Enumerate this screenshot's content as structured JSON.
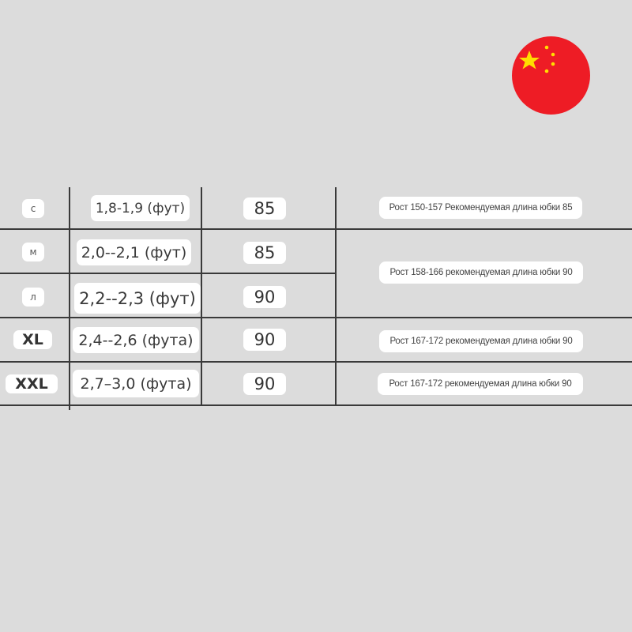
{
  "flag": {
    "icon": "china-flag-icon",
    "color": "#ee1c25",
    "star_color": "#ffde00"
  },
  "rows": [
    {
      "size": "с",
      "range": "1,8-1,9 (фут)",
      "value": "85",
      "desc": "Рост 150-157 Рекомендуемая длина юбки 85"
    },
    {
      "size": "м",
      "range": "2,0--2,1 (фут)",
      "value": "85",
      "desc": "Рост 158-166 рекомендуемая длина юбки 90"
    },
    {
      "size": "л",
      "range": "2,2--2,3 (фут)",
      "value": "90"
    },
    {
      "size": "XL",
      "range": "2,4--2,6 (фута)",
      "value": "90",
      "desc": "Рост 167-172 рекомендуемая длина юбки 90"
    },
    {
      "size": "XXL",
      "range": "2,7–3,0 (фута)",
      "value": "90",
      "desc": "Рост 167-172 рекомендуемая длина юбки 90"
    }
  ]
}
